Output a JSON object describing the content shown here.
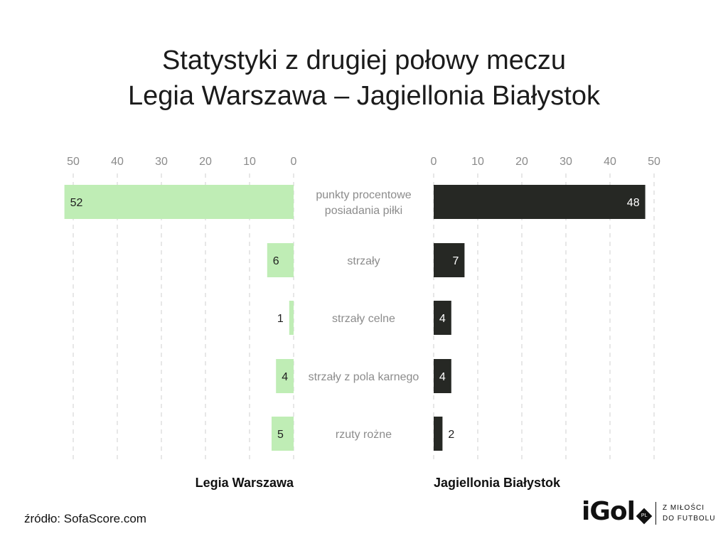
{
  "title_lines": [
    "Statystyki z drugiej połowy meczu",
    "Legia Warszawa – Jagiellonia Białystok"
  ],
  "source": "źródło: SofaScore.com",
  "brand": {
    "logo": "iGol",
    "badge": "PL",
    "tagline": [
      "Z MIŁOŚCI",
      "DO FUTBOLU"
    ]
  },
  "colors": {
    "home": "#bfedb5",
    "away": "#262824",
    "home_label": "#1f1f1f",
    "away_label_inside": "#ffffff",
    "away_label_outside": "#1f1f1f"
  },
  "chart_data": {
    "type": "bar",
    "orientation": "horizontal-mirrored",
    "categories": [
      [
        "punkty procentowe",
        "posiadania piłki"
      ],
      [
        "strzały"
      ],
      [
        "strzały celne"
      ],
      [
        "strzały z pola karnego"
      ],
      [
        "rzuty rożne"
      ]
    ],
    "series": [
      {
        "name": "Legia Warszawa",
        "values": [
          52,
          6,
          1,
          4,
          5
        ]
      },
      {
        "name": "Jagiellonia Białystok",
        "values": [
          48,
          7,
          4,
          4,
          2
        ]
      }
    ],
    "ticks": [
      0,
      10,
      20,
      30,
      40,
      50
    ],
    "xlim": [
      0,
      50
    ],
    "grid": true,
    "legend": "bottom, team names under each half"
  }
}
